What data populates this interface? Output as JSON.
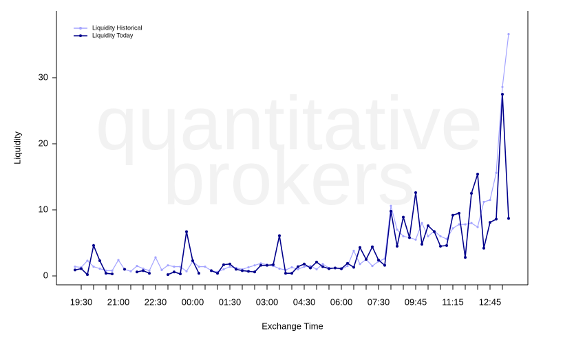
{
  "chart_data": {
    "type": "line",
    "watermark": [
      "quantitative",
      "brokers"
    ],
    "x_label": "Exchange Time",
    "y_label": "Liquidity",
    "categories": [
      null,
      "19:30",
      null,
      null,
      null,
      null,
      null,
      "21:00",
      null,
      null,
      null,
      null,
      null,
      "22:30",
      null,
      null,
      null,
      null,
      null,
      "00:00",
      null,
      null,
      null,
      null,
      null,
      "01:30",
      null,
      null,
      null,
      null,
      null,
      "03:00",
      null,
      null,
      null,
      null,
      null,
      "04:30",
      null,
      null,
      null,
      null,
      null,
      "06:00",
      null,
      null,
      null,
      null,
      null,
      "07:30",
      null,
      null,
      null,
      null,
      null,
      "09:45",
      null,
      null,
      null,
      null,
      null,
      "11:15",
      null,
      null,
      null,
      null,
      null,
      "12:45",
      null,
      null,
      null
    ],
    "series": [
      {
        "name": "Liquidity Historical",
        "color": "#a3a3ff",
        "values": [
          1.4,
          1.3,
          2.3,
          1.4,
          1.1,
          0.8,
          0.8,
          2.4,
          1.0,
          0.7,
          1.5,
          1.1,
          0.8,
          2.8,
          0.9,
          1.6,
          1.4,
          1.4,
          0.7,
          2.2,
          1.4,
          1.4,
          0.8,
          0.6,
          1.0,
          1.4,
          1.2,
          1.0,
          1.3,
          1.6,
          1.9,
          1.7,
          1.5,
          1.1,
          0.9,
          1.3,
          1.0,
          1.4,
          1.5,
          1.0,
          1.8,
          1.2,
          1.2,
          1.0,
          1.5,
          3.8,
          1.8,
          2.5,
          1.5,
          2.2,
          2.6,
          10.6,
          7.0,
          6.0,
          5.8,
          5.5,
          8.0,
          6.0,
          6.8,
          6.0,
          5.6,
          7.2,
          7.8,
          7.8,
          8.0,
          7.4,
          11.2,
          11.5,
          15.6,
          28.6,
          36.6
        ]
      },
      {
        "name": "Liquidity Today",
        "color": "#00008b",
        "values": [
          0.9,
          1.1,
          0.2,
          4.6,
          2.3,
          0.4,
          0.3,
          null,
          1.0,
          null,
          0.6,
          0.8,
          0.4,
          null,
          null,
          0.2,
          0.6,
          0.3,
          6.7,
          2.3,
          0.4,
          null,
          0.8,
          0.4,
          1.7,
          1.8,
          1.0,
          0.8,
          0.7,
          0.6,
          1.6,
          1.6,
          1.7,
          6.1,
          0.4,
          0.4,
          1.4,
          1.8,
          1.2,
          2.1,
          1.4,
          1.1,
          1.2,
          1.1,
          1.9,
          1.3,
          4.3,
          2.5,
          4.4,
          2.4,
          1.6,
          9.8,
          4.5,
          8.9,
          5.8,
          12.6,
          4.8,
          7.6,
          6.7,
          4.5,
          4.6,
          9.2,
          9.5,
          2.8,
          12.5,
          15.4,
          4.2,
          8.1,
          8.6,
          27.5,
          8.7
        ]
      }
    ],
    "ylim": [
      -1.35,
      40.1
    ],
    "yticks": [
      0,
      10,
      20,
      30
    ],
    "legend": "top-left"
  }
}
